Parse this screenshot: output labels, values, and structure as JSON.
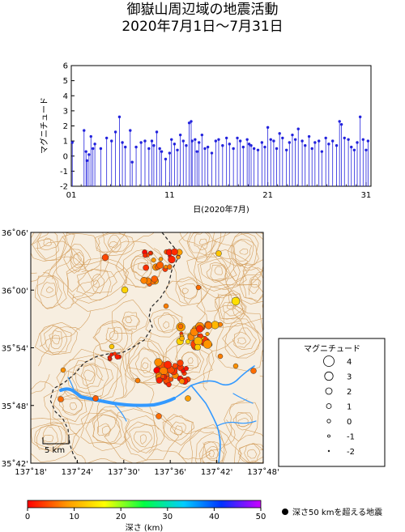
{
  "title": {
    "line1": "御嶽山周辺域の地震活動",
    "line2": "2020年7月1日～7月31日"
  },
  "chart_data": {
    "type": "scatter",
    "subtype": "stem",
    "xlabel": "日(2020年7月)",
    "ylabel": "マグニチュード",
    "xlim": [
      1,
      31.5
    ],
    "ylim": [
      -2,
      6
    ],
    "xticks": [
      "01",
      "11",
      "21",
      "31"
    ],
    "yticks": [
      "-2",
      "-1",
      "0",
      "1",
      "2",
      "3",
      "4",
      "5",
      "6"
    ],
    "color": "#2222dd",
    "x": [
      1.1,
      2.3,
      2.5,
      2.6,
      2.8,
      3.0,
      3.2,
      3.4,
      4.0,
      4.6,
      5.1,
      5.5,
      5.9,
      6.2,
      6.5,
      7.0,
      7.2,
      7.6,
      8.1,
      8.5,
      8.9,
      9.2,
      9.4,
      9.7,
      10.0,
      10.2,
      10.6,
      11.0,
      11.2,
      11.5,
      11.8,
      12.1,
      12.4,
      12.7,
      13.0,
      13.2,
      13.3,
      13.6,
      13.8,
      14.0,
      14.3,
      14.6,
      14.9,
      15.3,
      15.7,
      16.0,
      16.4,
      16.8,
      17.1,
      17.5,
      17.9,
      18.2,
      18.5,
      18.9,
      19.1,
      19.3,
      19.6,
      20.0,
      20.4,
      20.7,
      21.0,
      21.3,
      21.6,
      21.9,
      22.2,
      22.5,
      22.9,
      23.2,
      23.5,
      23.8,
      24.1,
      24.5,
      24.8,
      25.2,
      25.5,
      25.8,
      26.2,
      26.5,
      26.9,
      27.2,
      27.6,
      28.0,
      28.3,
      28.5,
      28.8,
      29.2,
      29.5,
      29.8,
      30.1,
      30.4,
      30.7,
      31.0,
      31.2
    ],
    "values": [
      0.9,
      1.7,
      0.3,
      -0.3,
      0.1,
      1.3,
      0.5,
      0.8,
      0.5,
      1.2,
      1.0,
      1.6,
      2.6,
      0.9,
      0.6,
      1.7,
      -0.4,
      0.6,
      0.9,
      1.0,
      0.5,
      1.0,
      0.7,
      1.6,
      0.5,
      0.3,
      -0.2,
      0.2,
      1.1,
      0.8,
      0.4,
      1.4,
      1.0,
      0.7,
      2.2,
      2.3,
      1.0,
      1.1,
      0.3,
      0.9,
      1.4,
      0.5,
      0.6,
      0.2,
      1.0,
      1.1,
      0.7,
      1.2,
      0.8,
      0.5,
      1.2,
      1.0,
      0.6,
      1.1,
      0.8,
      0.7,
      0.5,
      0.4,
      0.9,
      0.6,
      1.9,
      1.1,
      1.0,
      0.5,
      1.5,
      1.2,
      0.4,
      0.9,
      1.4,
      1.1,
      1.8,
      1.0,
      0.7,
      1.3,
      0.5,
      0.9,
      1.0,
      0.3,
      1.2,
      0.8,
      1.0,
      0.7,
      2.3,
      2.1,
      1.2,
      1.1,
      0.6,
      0.4,
      0.9,
      2.6,
      1.1,
      0.4,
      1.0
    ]
  },
  "map": {
    "lat_labels": [
      "36˚06'",
      "36˚00'",
      "35˚54'",
      "35˚48'",
      "35˚42'"
    ],
    "lon_labels": [
      "137˚18'",
      "137˚24'",
      "137˚30'",
      "137˚36'",
      "137˚42'",
      "137˚48'"
    ],
    "scale_label": "5 km",
    "colors": {
      "land": "#f7eee0",
      "contour": "#d4a060",
      "water": "#3399ff",
      "border": "#222222"
    }
  },
  "legend": {
    "title": "マグニチュード",
    "items": [
      "4",
      "3",
      "2",
      "1",
      "0",
      "-1",
      "-2"
    ]
  },
  "colorbar": {
    "label": "深さ (km)",
    "ticks": [
      "0",
      "10",
      "20",
      "30",
      "40",
      "50"
    ],
    "deep_note": "深さ50 kmを超える地震"
  }
}
